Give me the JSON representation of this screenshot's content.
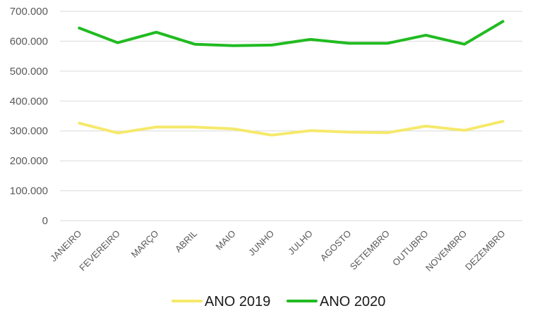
{
  "chart_data": {
    "type": "line",
    "categories": [
      "JANEIRO",
      "FEVEREIRO",
      "MARÇO",
      "ABRIL",
      "MAIO",
      "JUNHO",
      "JULHO",
      "AGOSTO",
      "SETEMBRO",
      "OUTUBRO",
      "NOVEMBRO",
      "DEZEMBRO"
    ],
    "series": [
      {
        "name": "ANO 2019",
        "color": "#f5e96b",
        "values": [
          326000,
          293000,
          313000,
          313000,
          307000,
          286000,
          301000,
          296000,
          294000,
          316000,
          302000,
          332000
        ]
      },
      {
        "name": "ANO 2020",
        "color": "#21bb21",
        "values": [
          644000,
          595000,
          630000,
          590000,
          585000,
          587000,
          606000,
          593000,
          593000,
          620000,
          590000,
          666000
        ]
      }
    ],
    "ylim": [
      0,
      700000
    ],
    "yticks": [
      0,
      100000,
      200000,
      300000,
      400000,
      500000,
      600000,
      700000
    ],
    "ytick_labels": [
      "0",
      "100.000",
      "200.000",
      "300.000",
      "400.000",
      "500.000",
      "600.000",
      "700.000"
    ],
    "grid": true,
    "legend_position": "bottom",
    "title": "",
    "xlabel": "",
    "ylabel": ""
  }
}
